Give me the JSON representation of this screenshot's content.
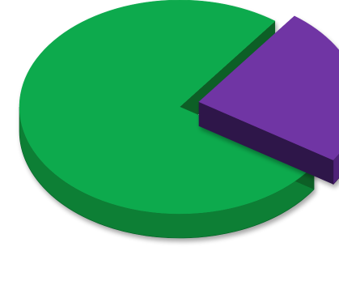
{
  "chart_data": {
    "type": "pie",
    "style": "3d-exploded",
    "title": "",
    "legend": "none",
    "data_labels": "none",
    "slices": [
      {
        "name": "",
        "value": 76,
        "color": "#0DAA4D",
        "side_color": "#0A7F36",
        "edge_color": "#075F27",
        "exploded": false
      },
      {
        "name": "",
        "value": 24,
        "color": "#7034A4",
        "side_color": "#4F2478",
        "edge_color": "#2E1249",
        "exploded": true
      }
    ]
  }
}
